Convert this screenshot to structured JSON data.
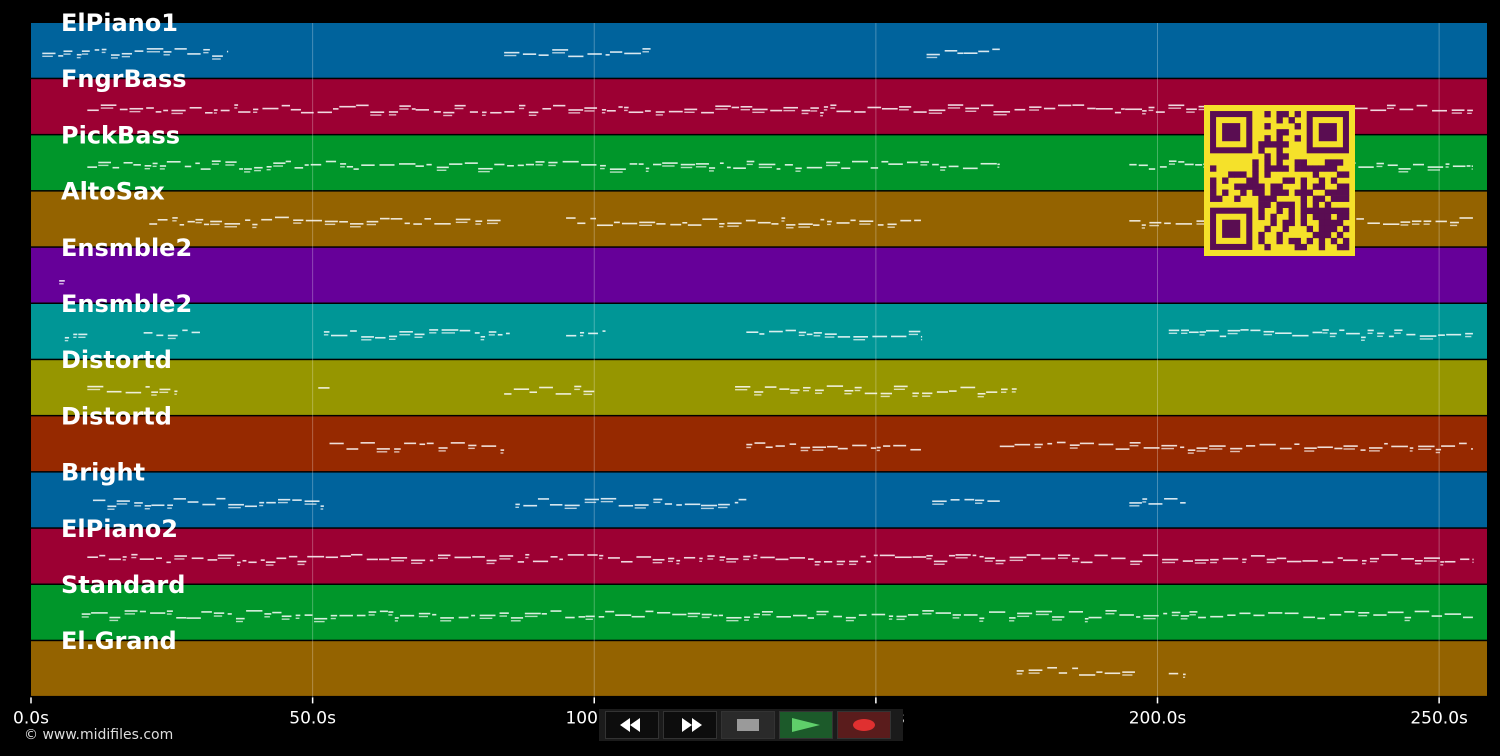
{
  "tracks": [
    {
      "name": "ElPiano1",
      "color": "#00639c"
    },
    {
      "name": "FngrBass",
      "color": "#9c0033"
    },
    {
      "name": "PickBass",
      "color": "#00962a"
    },
    {
      "name": "AltoSax",
      "color": "#946300"
    },
    {
      "name": "Ensmble2",
      "color": "#660099"
    },
    {
      "name": "Ensmble2",
      "color": "#009696"
    },
    {
      "name": "Distortd",
      "color": "#969600"
    },
    {
      "name": "Distortd",
      "color": "#962900"
    },
    {
      "name": "Bright",
      "color": "#00639c"
    },
    {
      "name": "ElPiano2",
      "color": "#9c0033"
    },
    {
      "name": "Standard",
      "color": "#00962a"
    },
    {
      "name": "El.Grand",
      "color": "#946300"
    }
  ],
  "timeline": {
    "unit": "s",
    "max_seconds": 258.5,
    "ticks": [
      {
        "value": 0,
        "label": "0.0s"
      },
      {
        "value": 50,
        "label": "50.0s"
      },
      {
        "value": 100,
        "label": "100.0s"
      },
      {
        "value": 150,
        "label": "150.0s"
      },
      {
        "value": 200,
        "label": "200.0s"
      },
      {
        "value": 250,
        "label": "250.0s"
      }
    ]
  },
  "copyright": "© www.midifiles.com",
  "transport": {
    "rewind_icon": "rewind-icon",
    "forward_icon": "fast-forward-icon",
    "stop_icon": "stop-icon",
    "play_icon": "play-icon",
    "record_icon": "record-icon"
  },
  "qr_colors": {
    "fg": "#5a0d52",
    "bg": "#f5e12a"
  }
}
